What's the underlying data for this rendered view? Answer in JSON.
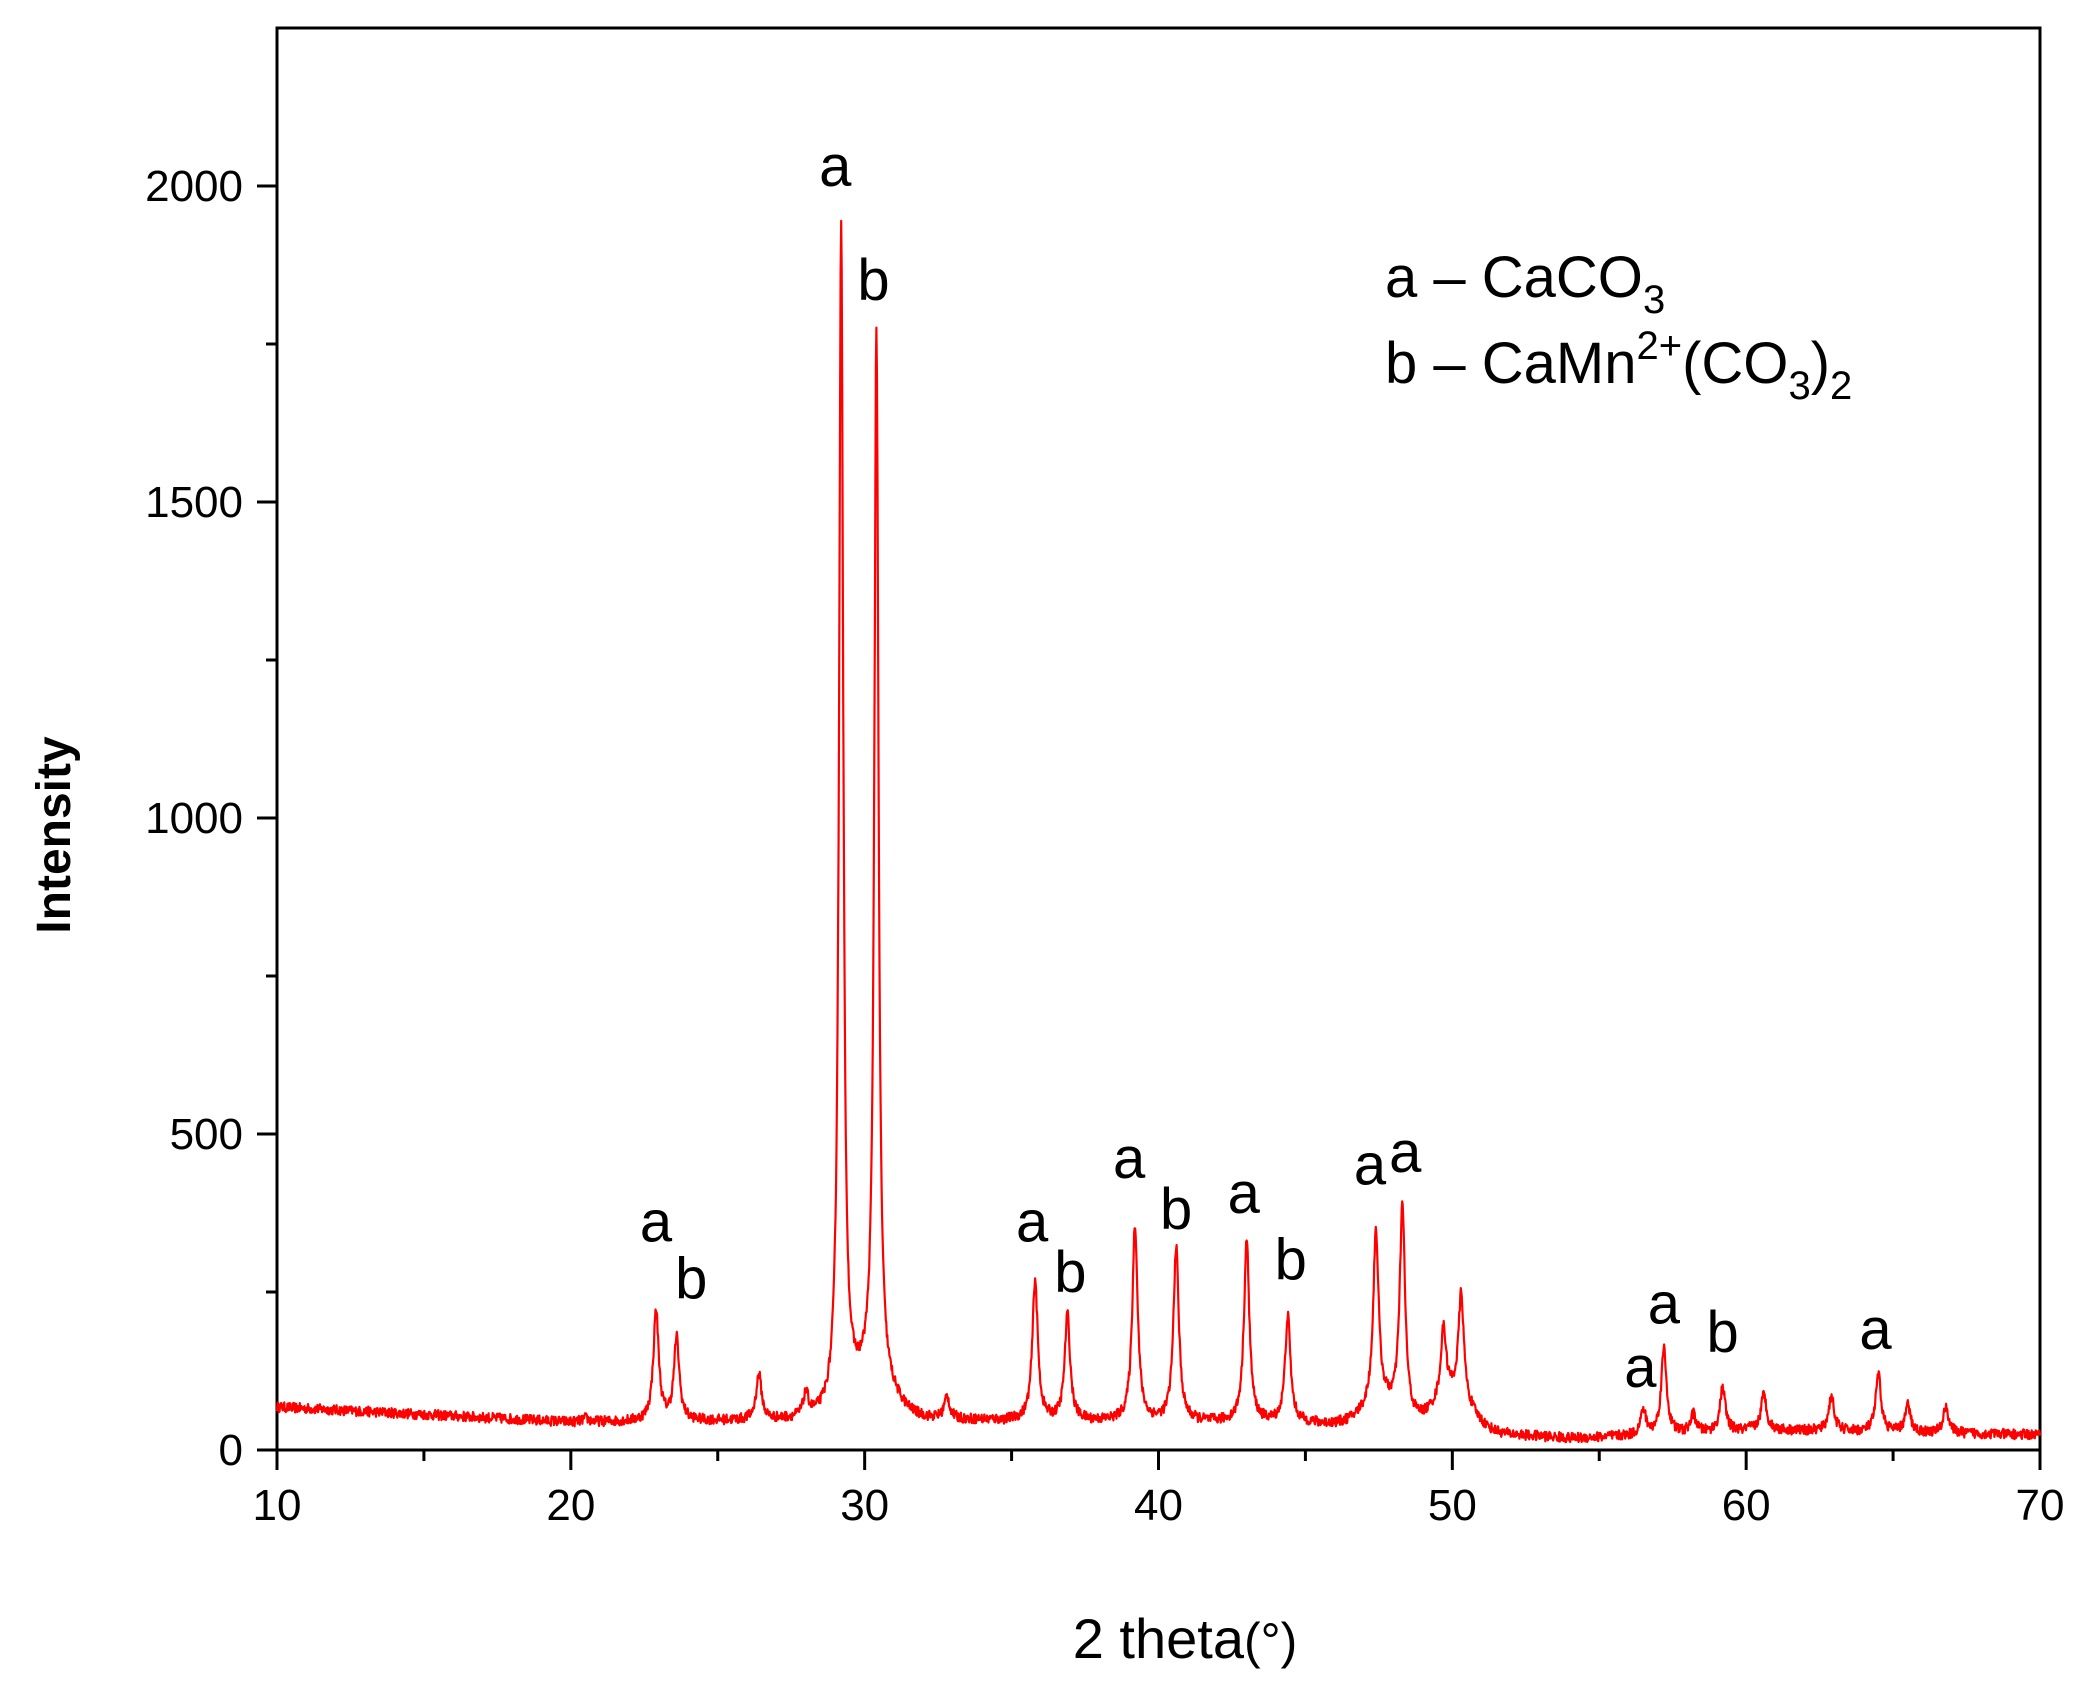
{
  "chart_data": {
    "type": "line",
    "title": "",
    "xlabel": "2 theta",
    "xlabel_unit": "(°)",
    "ylabel": "Intensity",
    "xlim": [
      10,
      70
    ],
    "ylim": [
      0,
      2250
    ],
    "x_ticks": [
      10,
      20,
      30,
      40,
      50,
      60,
      70
    ],
    "y_ticks": [
      0,
      500,
      1000,
      1500,
      2000
    ],
    "grid": false,
    "line_color": "#ff0000",
    "series": [
      {
        "peaks": [
          {
            "x": 20.5,
            "y": 50
          },
          {
            "x": 22.9,
            "y": 220
          },
          {
            "x": 23.6,
            "y": 175
          },
          {
            "x": 26.4,
            "y": 118
          },
          {
            "x": 28.0,
            "y": 82
          },
          {
            "x": 29.2,
            "y": 1940
          },
          {
            "x": 30.4,
            "y": 1770
          },
          {
            "x": 32.8,
            "y": 82
          },
          {
            "x": 34.7,
            "y": 45
          },
          {
            "x": 35.8,
            "y": 268
          },
          {
            "x": 36.9,
            "y": 212
          },
          {
            "x": 39.2,
            "y": 355
          },
          {
            "x": 40.6,
            "y": 320
          },
          {
            "x": 43.0,
            "y": 330
          },
          {
            "x": 44.4,
            "y": 210
          },
          {
            "x": 47.4,
            "y": 345
          },
          {
            "x": 48.3,
            "y": 385
          },
          {
            "x": 49.7,
            "y": 190
          },
          {
            "x": 50.3,
            "y": 245
          },
          {
            "x": 56.5,
            "y": 62
          },
          {
            "x": 57.2,
            "y": 160
          },
          {
            "x": 58.2,
            "y": 55
          },
          {
            "x": 59.2,
            "y": 98
          },
          {
            "x": 60.6,
            "y": 88
          },
          {
            "x": 62.9,
            "y": 85
          },
          {
            "x": 64.5,
            "y": 118
          },
          {
            "x": 65.5,
            "y": 70
          },
          {
            "x": 66.8,
            "y": 68
          }
        ]
      }
    ],
    "annotations": [
      {
        "text": "a",
        "x": 22.9,
        "y": 330
      },
      {
        "text": "b",
        "x": 24.1,
        "y": 240
      },
      {
        "text": "a",
        "x": 29.0,
        "y": 2000
      },
      {
        "text": "b",
        "x": 30.3,
        "y": 1820
      },
      {
        "text": "a",
        "x": 35.7,
        "y": 330
      },
      {
        "text": "b",
        "x": 37.0,
        "y": 250
      },
      {
        "text": "a",
        "x": 39.0,
        "y": 430
      },
      {
        "text": "b",
        "x": 40.6,
        "y": 350
      },
      {
        "text": "a",
        "x": 42.9,
        "y": 375
      },
      {
        "text": "b",
        "x": 44.5,
        "y": 270
      },
      {
        "text": "a",
        "x": 47.2,
        "y": 420
      },
      {
        "text": "a",
        "x": 48.4,
        "y": 440
      },
      {
        "text": "a",
        "x": 56.4,
        "y": 100
      },
      {
        "text": "a",
        "x": 57.2,
        "y": 200
      },
      {
        "text": "b",
        "x": 59.2,
        "y": 155
      },
      {
        "text": "a",
        "x": 64.4,
        "y": 160
      }
    ],
    "legend": {
      "placement": "top-right",
      "entries": [
        {
          "key": "a",
          "dash": "–",
          "formula": "CaCO",
          "sub1": "3",
          "sup": "",
          "paren": "",
          "sub2": ""
        },
        {
          "key": "b",
          "dash": "–",
          "formula": "CaMn",
          "sup": "2+",
          "paren": "(CO",
          "sub1": "3",
          "sub2": "2"
        }
      ]
    }
  }
}
